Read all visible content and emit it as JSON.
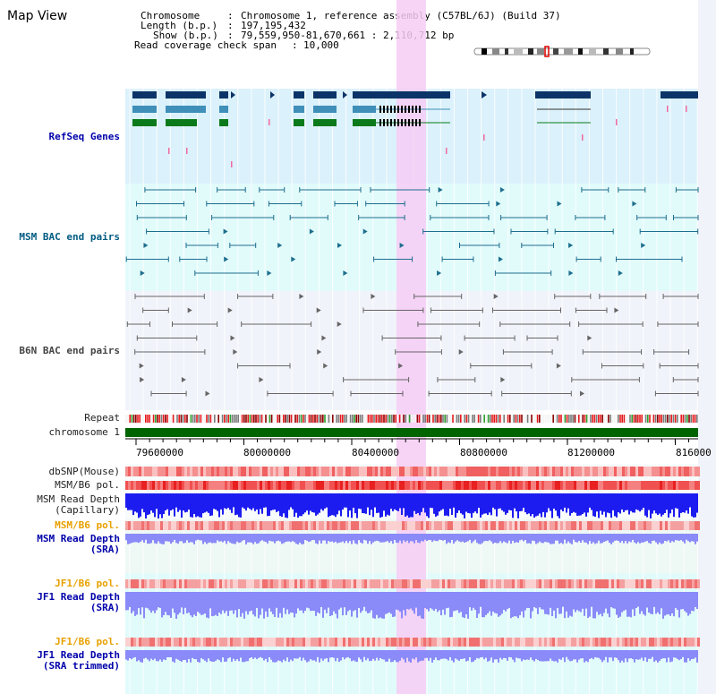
{
  "page": {
    "title": "Map View"
  },
  "info": {
    "chromosome_key": "Chromosome",
    "chromosome_value": "Chromosome 1, reference assembly (C57BL/6J) (Build 37)",
    "length_key": "Length (b.p.)",
    "length_value": "197,195,432",
    "show_key": "Show (b.p.)",
    "show_value": "79,559,950-81,670,661 : 2,110,712 bp",
    "coverage_key": "Read coverage check span",
    "coverage_value": "10,000"
  },
  "tracks": {
    "refseq": "RefSeq Genes",
    "msm_bac": "MSM BAC end pairs",
    "b6n_bac": "B6N BAC end pairs",
    "repeat": "Repeat",
    "chromosome": "chromosome 1",
    "dbsnp": "dbSNP(Mouse)",
    "msm_b6_pol_1": "MSM/B6 pol.",
    "msm_read_depth_cap_1": "MSM Read Depth",
    "msm_read_depth_cap_2": "(Capillary)",
    "msm_b6_pol_2": "MSM/B6 pol.",
    "msm_read_depth_sra_1": "MSM Read Depth",
    "msm_read_depth_sra_2": "(SRA)",
    "jf1_b6_pol_1": "JF1/B6 pol.",
    "jf1_read_depth_sra_1": "JF1 Read Depth",
    "jf1_read_depth_sra_2": "(SRA)",
    "jf1_b6_pol_2": "JF1/B6 pol.",
    "jf1_read_depth_trim_1": "JF1 Read Depth",
    "jf1_read_depth_trim_2": "(SRA trimmed)"
  },
  "axis": {
    "ticks": [
      "79600000",
      "80000000",
      "80400000",
      "80800000",
      "81200000",
      "816000"
    ]
  },
  "colors": {
    "refseq_bg": "#dbf1fb",
    "msm_bg": "#e1fbfb",
    "b6n_bg": "#f1f3fa",
    "highlight": "#f6cdf4",
    "gene_dark": "#0c3468",
    "gene_mid": "#3f8fb9",
    "gene_green": "#0a7a1a",
    "chromosome": "#006400",
    "snp": "#f08a8a",
    "depth_blue": "#1c1cf0",
    "depth_light": "#8a8af8"
  }
}
